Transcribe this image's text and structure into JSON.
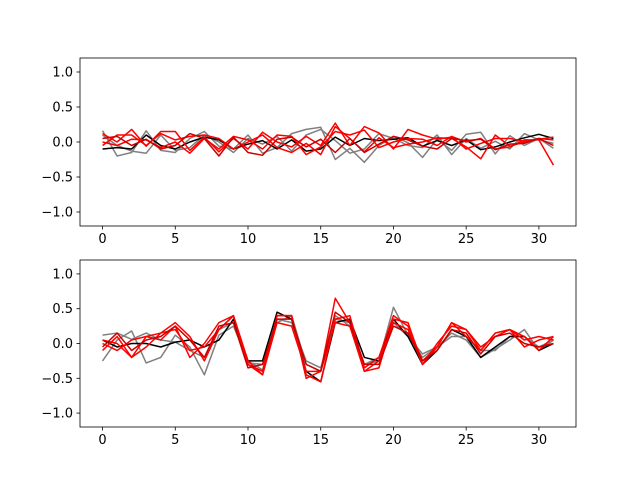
{
  "chart_data": [
    {
      "type": "line",
      "xlim": [
        -1.55,
        32.55
      ],
      "ylim": [
        -1.2,
        1.2
      ],
      "x_ticks": [
        0,
        5,
        10,
        15,
        20,
        25,
        30
      ],
      "y_ticks": [
        -1.0,
        -0.5,
        0.0,
        0.5,
        1.0
      ],
      "x_tick_labels": [
        "0",
        "5",
        "10",
        "15",
        "20",
        "25",
        "30"
      ],
      "y_tick_labels": [
        "−1.0",
        "−0.5",
        "0.0",
        "0.5",
        "1.0"
      ],
      "colors": {
        "series_a": "#808080",
        "series_b": "#000000",
        "series_c": "#ff0000",
        "series_d": "#cc0000"
      },
      "x": [
        0,
        1,
        2,
        3,
        4,
        5,
        6,
        7,
        8,
        9,
        10,
        11,
        12,
        13,
        14,
        15,
        16,
        17,
        18,
        19,
        20,
        21,
        22,
        23,
        24,
        25,
        26,
        27,
        28,
        29,
        30,
        31
      ],
      "series": [
        {
          "color": "#808080",
          "values": [
            0.16,
            -0.2,
            -0.15,
            0.16,
            -0.12,
            -0.15,
            0.05,
            0.15,
            -0.06,
            -0.1,
            0.1,
            -0.16,
            -0.08,
            0.12,
            0.18,
            0.21,
            -0.25,
            -0.09,
            -0.29,
            -0.05,
            0.08,
            -0.01,
            -0.22,
            0.04,
            -0.12,
            0.11,
            0.14,
            -0.17,
            0.09,
            -0.05,
            0.05,
            -0.09
          ]
        },
        {
          "color": "#808080",
          "values": [
            0.1,
            -0.05,
            -0.13,
            -0.16,
            0.1,
            -0.12,
            -0.08,
            0.1,
            0.0,
            -0.15,
            0.05,
            -0.03,
            0.08,
            -0.13,
            0.1,
            0.18,
            0.02,
            -0.16,
            -0.1,
            0.12,
            0.05,
            -0.05,
            -0.08,
            0.1,
            -0.18,
            0.05,
            -0.09,
            0.01,
            -0.1,
            0.12,
            0.03,
            -0.02
          ]
        },
        {
          "color": "#000000",
          "values": [
            -0.1,
            -0.08,
            -0.1,
            0.1,
            -0.05,
            -0.1,
            0.0,
            0.07,
            0.03,
            -0.1,
            -0.03,
            0.02,
            -0.1,
            0.03,
            -0.13,
            -0.1,
            0.07,
            -0.05,
            0.05,
            0.02,
            0.04,
            0.06,
            -0.06,
            0.02,
            -0.05,
            0.03,
            -0.11,
            -0.07,
            0.0,
            0.06,
            0.11,
            0.05
          ]
        },
        {
          "color": "#ff0000",
          "values": [
            0.12,
            0.0,
            0.18,
            -0.06,
            0.15,
            0.15,
            -0.12,
            0.07,
            -0.14,
            0.05,
            -0.1,
            0.14,
            0.0,
            -0.07,
            0.08,
            -0.05,
            0.27,
            -0.05,
            0.22,
            0.13,
            -0.1,
            0.18,
            0.1,
            0.04,
            0.07,
            -0.1,
            -0.02,
            0.05,
            0.05,
            0.01,
            0.04,
            0.07
          ]
        },
        {
          "color": "#ff0000",
          "values": [
            0.0,
            -0.05,
            0.04,
            0.03,
            -0.08,
            0.0,
            -0.16,
            0.05,
            -0.1,
            0.08,
            0.03,
            -0.1,
            0.1,
            0.08,
            -0.18,
            -0.07,
            0.15,
            0.1,
            0.17,
            -0.08,
            0.0,
            0.05,
            0.04,
            -0.05,
            0.08,
            0.0,
            0.05,
            -0.1,
            -0.07,
            0.03,
            0.03,
            -0.33
          ]
        },
        {
          "color": "#ff0000",
          "values": [
            -0.05,
            0.1,
            0.1,
            -0.05,
            0.12,
            0.03,
            0.08,
            0.1,
            0.05,
            -0.1,
            0.0,
            0.1,
            -0.08,
            -0.15,
            -0.02,
            -0.18,
            0.22,
            0.05,
            -0.14,
            0.06,
            -0.08,
            -0.03,
            0.0,
            0.06,
            0.05,
            -0.07,
            -0.24,
            0.1,
            -0.06,
            0.0,
            0.05,
            0.03
          ]
        },
        {
          "color": "#cc0000",
          "values": [
            0.05,
            0.08,
            -0.05,
            0.04,
            -0.1,
            -0.05,
            0.12,
            0.05,
            -0.2,
            0.07,
            -0.15,
            -0.19,
            0.04,
            0.07,
            -0.07,
            0.04,
            -0.15,
            0.05,
            -0.15,
            -0.03,
            0.08,
            0.03,
            -0.06,
            -0.1,
            0.05,
            0.02,
            0.04,
            -0.11,
            -0.03,
            -0.02,
            0.05,
            -0.05
          ]
        }
      ]
    },
    {
      "type": "line",
      "xlim": [
        -1.55,
        32.55
      ],
      "ylim": [
        -1.2,
        1.2
      ],
      "x_ticks": [
        0,
        5,
        10,
        15,
        20,
        25,
        30
      ],
      "y_ticks": [
        -1.0,
        -0.5,
        0.0,
        0.5,
        1.0
      ],
      "x_tick_labels": [
        "0",
        "5",
        "10",
        "15",
        "20",
        "25",
        "30"
      ],
      "y_tick_labels": [
        "−1.0",
        "−0.5",
        "0.0",
        "0.5",
        "1.0"
      ],
      "x": [
        0,
        1,
        2,
        3,
        4,
        5,
        6,
        7,
        8,
        9,
        10,
        11,
        12,
        13,
        14,
        15,
        16,
        17,
        18,
        19,
        20,
        21,
        22,
        23,
        24,
        25,
        26,
        27,
        28,
        29,
        30,
        31
      ],
      "series": [
        {
          "color": "#808080",
          "values": [
            -0.25,
            0.05,
            0.18,
            -0.28,
            -0.2,
            0.12,
            -0.05,
            -0.45,
            0.12,
            0.25,
            -0.25,
            -0.38,
            0.35,
            0.3,
            -0.25,
            -0.35,
            0.35,
            0.3,
            -0.3,
            -0.25,
            0.52,
            0.12,
            -0.2,
            -0.05,
            0.15,
            0.05,
            -0.2,
            -0.08,
            0.05,
            0.2,
            -0.1,
            0.05
          ]
        },
        {
          "color": "#808080",
          "values": [
            0.12,
            0.15,
            0.06,
            0.15,
            0.05,
            0.02,
            -0.1,
            -0.2,
            0.2,
            0.3,
            -0.28,
            -0.3,
            0.3,
            0.4,
            -0.3,
            -0.4,
            0.4,
            0.25,
            -0.3,
            -0.2,
            0.3,
            0.1,
            -0.15,
            -0.05,
            0.1,
            0.1,
            -0.1,
            -0.1,
            0.1,
            0.1,
            -0.05,
            0.05
          ]
        },
        {
          "color": "#000000",
          "values": [
            0.05,
            -0.05,
            0.0,
            0.0,
            -0.05,
            0.02,
            0.05,
            -0.05,
            0.05,
            0.35,
            -0.25,
            -0.25,
            0.45,
            0.35,
            -0.4,
            -0.55,
            0.3,
            0.35,
            -0.2,
            -0.25,
            0.35,
            0.1,
            -0.3,
            -0.1,
            0.2,
            0.1,
            -0.2,
            -0.05,
            0.1,
            0.1,
            -0.1,
            0.0
          ]
        },
        {
          "color": "#ff0000",
          "values": [
            0.0,
            -0.1,
            0.05,
            0.1,
            0.15,
            0.3,
            0.1,
            -0.25,
            0.2,
            0.4,
            -0.3,
            -0.45,
            0.4,
            0.4,
            -0.5,
            -0.4,
            0.65,
            0.3,
            -0.4,
            -0.35,
            0.35,
            0.3,
            -0.3,
            -0.05,
            0.3,
            0.1,
            -0.1,
            0.15,
            0.2,
            0.1,
            -0.1,
            0.1
          ]
        },
        {
          "color": "#ff0000",
          "values": [
            -0.1,
            0.1,
            -0.2,
            0.1,
            0.05,
            0.25,
            -0.2,
            0.0,
            0.3,
            0.4,
            -0.3,
            -0.4,
            0.4,
            0.4,
            -0.45,
            -0.55,
            0.35,
            0.4,
            -0.35,
            -0.2,
            0.4,
            0.25,
            -0.25,
            -0.05,
            0.3,
            0.2,
            -0.05,
            0.1,
            0.2,
            0.05,
            0.1,
            0.05
          ]
        },
        {
          "color": "#ff0000",
          "values": [
            0.05,
            0.0,
            -0.2,
            -0.05,
            0.15,
            0.2,
            -0.1,
            -0.05,
            0.2,
            0.4,
            -0.25,
            -0.45,
            0.3,
            0.25,
            -0.4,
            -0.4,
            0.3,
            0.25,
            -0.4,
            -0.25,
            0.3,
            0.2,
            -0.3,
            0.0,
            0.25,
            0.2,
            -0.1,
            0.15,
            0.2,
            -0.05,
            0.05,
            0.1
          ]
        },
        {
          "color": "#cc0000",
          "values": [
            -0.05,
            0.15,
            -0.1,
            0.05,
            0.1,
            0.25,
            0.05,
            -0.2,
            0.25,
            0.3,
            -0.35,
            -0.3,
            0.35,
            0.35,
            -0.3,
            -0.4,
            0.45,
            0.3,
            -0.3,
            -0.3,
            0.25,
            0.15,
            -0.25,
            -0.1,
            0.2,
            0.15,
            -0.15,
            0.1,
            0.15,
            0.0,
            -0.05,
            0.0
          ]
        }
      ]
    }
  ]
}
